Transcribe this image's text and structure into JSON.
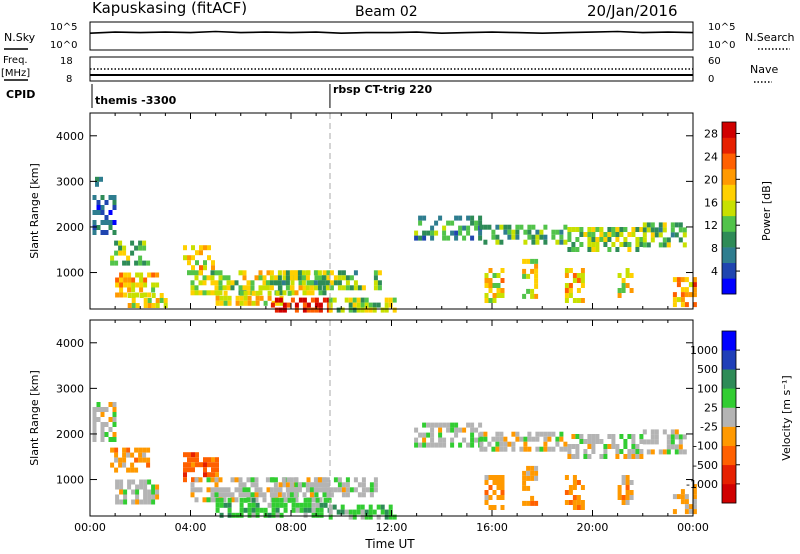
{
  "header": {
    "station": "Kapuskasing (fitACF)",
    "beam": "Beam 02",
    "date": "20/Jan/2016"
  },
  "strip_labels": {
    "nsky": "N.Sky",
    "nsearch": "N.Search",
    "freq": "Freq.",
    "freq_unit": "[MHz]",
    "nave": "Nave",
    "cpid": "CPID"
  },
  "cpid_labels": [
    {
      "text": "themis -3300",
      "start_hour": 0.0
    },
    {
      "text": "rbsp CT-trig 220",
      "start_hour": 9.55
    }
  ],
  "colors": {
    "power": [
      "#0000ff",
      "#1f45b0",
      "#2e7d8f",
      "#2e8b57",
      "#52c34a",
      "#c8e000",
      "#ffd000",
      "#ff9900",
      "#ff6000",
      "#e62000",
      "#d00000"
    ],
    "velocity": [
      "#0000ff",
      "#1f3fb8",
      "#2e8b57",
      "#32cd32",
      "#b4b4b4",
      "#ff9900",
      "#ff6000",
      "#e62000",
      "#d00000"
    ],
    "gray": "#c0c0c0"
  },
  "chart_data": [
    {
      "type": "line",
      "title": "",
      "xlabel": "",
      "ylabel": "",
      "left_ticks": [
        "10^5",
        "10^0"
      ],
      "right_ticks": [
        "10^5",
        "10^0"
      ],
      "series": [
        {
          "name": "N.Sky",
          "x": [
            0,
            1,
            2,
            3,
            4,
            5,
            6,
            7,
            8,
            9,
            10,
            11,
            12,
            13,
            14,
            15,
            16,
            17,
            18,
            19,
            20,
            21,
            22,
            23,
            24
          ],
          "y": [
            3,
            3.2,
            3.1,
            3.2,
            3.1,
            3.3,
            3.1,
            3.2,
            3.1,
            3.2,
            3.0,
            3.1,
            3.1,
            3.2,
            3.0,
            3.1,
            3.2,
            3.1,
            3.0,
            3.1,
            3.2,
            3.3,
            3.1,
            3.2,
            3.1
          ]
        }
      ],
      "ylim": [
        0,
        5
      ]
    },
    {
      "type": "line",
      "title": "",
      "xlabel": "",
      "ylabel": "",
      "left_ticks": [
        "18",
        "8"
      ],
      "right_ticks": [
        "60",
        "0"
      ],
      "series": [
        {
          "name": "Freq.",
          "x": [
            0,
            0.05,
            9.5,
            12,
            24
          ],
          "y": [
            10.5,
            10.5,
            10.5,
            10.5,
            10.5
          ]
        },
        {
          "name": "Nave",
          "x": [
            0,
            24
          ],
          "y": [
            30,
            30
          ]
        }
      ],
      "ylim": [
        8,
        18
      ]
    },
    {
      "type": "heatmap",
      "title": "",
      "xlabel": "",
      "ylabel": "Slant Range [km]",
      "xlim": [
        0,
        24
      ],
      "ylim": [
        200,
        4500
      ],
      "yticks": [
        "1000",
        "2000",
        "3000",
        "4000"
      ],
      "colorbar": {
        "label": "Power [dB]",
        "ticks": [
          "4",
          "8",
          "12",
          "16",
          "20",
          "24",
          "28"
        ],
        "range": [
          0,
          30
        ]
      },
      "regions": [
        {
          "t0": 0.1,
          "t1": 1.0,
          "r0": 1900,
          "r1": 2700,
          "v": 6
        },
        {
          "t0": 0.2,
          "t1": 0.5,
          "r0": 2900,
          "r1": 3100,
          "v": 5
        },
        {
          "t0": 0.8,
          "t1": 2.3,
          "r0": 1200,
          "r1": 1700,
          "v": 14
        },
        {
          "t0": 1.0,
          "t1": 2.6,
          "r0": 500,
          "r1": 1000,
          "v": 18
        },
        {
          "t0": 1.5,
          "t1": 3.0,
          "r0": 250,
          "r1": 550,
          "v": 16
        },
        {
          "t0": 3.7,
          "t1": 5.0,
          "r0": 1000,
          "r1": 1600,
          "v": 17
        },
        {
          "t0": 4.0,
          "t1": 9.5,
          "r0": 600,
          "r1": 1050,
          "v": 15
        },
        {
          "t0": 5.0,
          "t1": 8.0,
          "r0": 300,
          "r1": 600,
          "v": 17
        },
        {
          "t0": 7.2,
          "t1": 9.5,
          "r0": 200,
          "r1": 450,
          "v": 27
        },
        {
          "t0": 7.0,
          "t1": 11.5,
          "r0": 650,
          "r1": 1050,
          "v": 13
        },
        {
          "t0": 9.5,
          "t1": 12.2,
          "r0": 200,
          "r1": 450,
          "v": 14
        },
        {
          "t0": 12.9,
          "t1": 15.5,
          "r0": 1800,
          "r1": 2250,
          "v": 10
        },
        {
          "t0": 15.5,
          "t1": 19.0,
          "r0": 1650,
          "r1": 2050,
          "v": 11
        },
        {
          "t0": 19.0,
          "t1": 22.0,
          "r0": 1500,
          "r1": 2000,
          "v": 14
        },
        {
          "t0": 22.0,
          "t1": 23.6,
          "r0": 1600,
          "r1": 2100,
          "v": 12
        },
        {
          "t0": 15.7,
          "t1": 16.4,
          "r0": 400,
          "r1": 1100,
          "v": 17
        },
        {
          "t0": 17.2,
          "t1": 17.8,
          "r0": 500,
          "r1": 1300,
          "v": 16
        },
        {
          "t0": 18.9,
          "t1": 19.6,
          "r0": 350,
          "r1": 1100,
          "v": 19
        },
        {
          "t0": 21.0,
          "t1": 21.5,
          "r0": 500,
          "r1": 1100,
          "v": 17
        },
        {
          "t0": 23.2,
          "t1": 24.0,
          "r0": 250,
          "r1": 900,
          "v": 20
        }
      ]
    },
    {
      "type": "heatmap",
      "title": "",
      "xlabel": "Time UT",
      "ylabel": "Slant Range [km]",
      "xlim": [
        0,
        24
      ],
      "ylim": [
        200,
        4500
      ],
      "xticks": [
        "00:00",
        "04:00",
        "08:00",
        "12:00",
        "16:00",
        "20:00",
        "00:00"
      ],
      "yticks": [
        "1000",
        "2000",
        "3000",
        "4000"
      ],
      "colorbar": {
        "label": "Velocity [m s⁻¹]",
        "ticks": [
          "1000",
          "500",
          "100",
          "25",
          "-25",
          "-100",
          "-500",
          "-1000"
        ]
      },
      "regions": [
        {
          "t0": 0.1,
          "t1": 1.0,
          "r0": 1900,
          "r1": 2700,
          "c": 4
        },
        {
          "t0": 0.8,
          "t1": 2.3,
          "r0": 1200,
          "r1": 1700,
          "c": 5
        },
        {
          "t0": 1.0,
          "t1": 2.6,
          "r0": 500,
          "r1": 1000,
          "c": 4
        },
        {
          "t0": 3.7,
          "t1": 5.0,
          "r0": 1000,
          "r1": 1600,
          "c": 6
        },
        {
          "t0": 4.0,
          "t1": 9.5,
          "r0": 600,
          "r1": 1050,
          "c": 4
        },
        {
          "t0": 5.0,
          "t1": 9.5,
          "r0": 200,
          "r1": 600,
          "c": 3
        },
        {
          "t0": 7.0,
          "t1": 11.5,
          "r0": 650,
          "r1": 1050,
          "c": 4
        },
        {
          "t0": 9.5,
          "t1": 12.2,
          "r0": 200,
          "r1": 450,
          "c": 3
        },
        {
          "t0": 12.9,
          "t1": 15.5,
          "r0": 1800,
          "r1": 2250,
          "c": 4
        },
        {
          "t0": 15.5,
          "t1": 19.0,
          "r0": 1650,
          "r1": 2050,
          "c": 4
        },
        {
          "t0": 19.0,
          "t1": 22.0,
          "r0": 1500,
          "r1": 2000,
          "c": 4
        },
        {
          "t0": 22.0,
          "t1": 23.6,
          "r0": 1600,
          "r1": 2100,
          "c": 4
        },
        {
          "t0": 15.7,
          "t1": 16.4,
          "r0": 400,
          "r1": 1100,
          "c": 5
        },
        {
          "t0": 17.2,
          "t1": 17.8,
          "r0": 500,
          "r1": 1300,
          "c": 5
        },
        {
          "t0": 18.9,
          "t1": 19.6,
          "r0": 350,
          "r1": 1100,
          "c": 5
        },
        {
          "t0": 21.0,
          "t1": 21.5,
          "r0": 500,
          "r1": 1100,
          "c": 5
        },
        {
          "t0": 23.2,
          "t1": 24.0,
          "r0": 250,
          "r1": 900,
          "c": 5
        }
      ]
    }
  ]
}
